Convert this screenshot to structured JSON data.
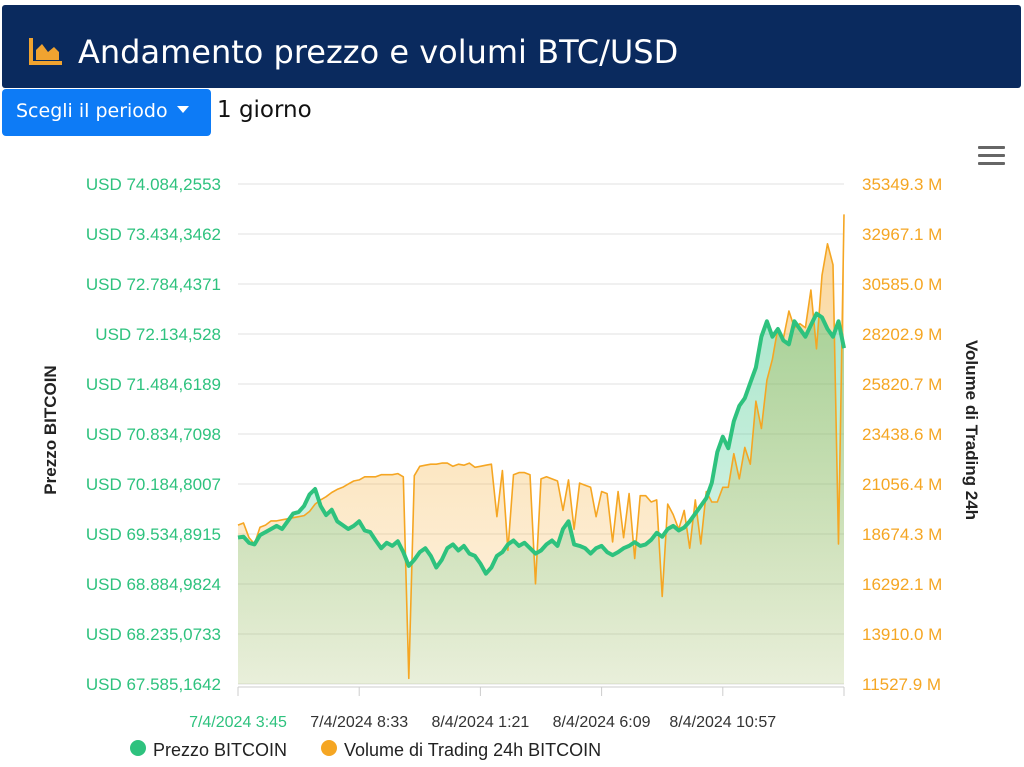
{
  "header": {
    "title": "Andamento prezzo e volumi BTC/USD",
    "icon": "area-chart-icon",
    "background": "#0a2a5e",
    "icon_color": "#f0a330"
  },
  "controls": {
    "period_button_label": "Scegli il periodo",
    "selected_period": "1 giorno",
    "menu_icon": "hamburger-menu-icon"
  },
  "colors": {
    "price": "#2ec27e",
    "volume": "#f5a623"
  },
  "chart_data": {
    "type": "area",
    "title": "",
    "y_left": {
      "label": "Prezzo BITCOIN",
      "min": 67585.1642,
      "max": 74084.2553,
      "ticks": [
        "USD 74.084,2553",
        "USD 73.434,3462",
        "USD 72.784,4371",
        "USD 72.134,528",
        "USD 71.484,6189",
        "USD 70.834,7098",
        "USD 70.184,8007",
        "USD 69.534,8915",
        "USD 68.884,9824",
        "USD 68.235,0733",
        "USD 67.585,1642"
      ]
    },
    "y_right": {
      "label": "Volume di Trading 24h",
      "min": 11527.9,
      "max": 35349.3,
      "unit": "M",
      "ticks": [
        "35349.3 M",
        "32967.1 M",
        "30585.0 M",
        "28202.9 M",
        "25820.7 M",
        "23438.6 M",
        "21056.4 M",
        "18674.3 M",
        "16292.1 M",
        "13910.0 M",
        "11527.9 M"
      ]
    },
    "x_ticks": [
      "7/4/2024 3:45",
      "7/4/2024 8:33",
      "8/4/2024 1:21",
      "8/4/2024 6:09",
      "8/4/2024 10:57"
    ],
    "legend": {
      "position": "bottom",
      "items": [
        "Prezzo BITCOIN",
        "Volume di Trading 24h BITCOIN"
      ]
    },
    "grid": true,
    "series": [
      {
        "name": "Prezzo BITCOIN",
        "axis": "left",
        "values": [
          69490,
          69500,
          69420,
          69400,
          69520,
          69560,
          69600,
          69640,
          69600,
          69700,
          69800,
          69820,
          69900,
          70050,
          70120,
          69900,
          69780,
          69850,
          69700,
          69650,
          69600,
          69640,
          69700,
          69580,
          69560,
          69450,
          69350,
          69420,
          69380,
          69440,
          69300,
          69120,
          69200,
          69300,
          69350,
          69250,
          69100,
          69200,
          69350,
          69400,
          69320,
          69380,
          69280,
          69250,
          69150,
          69020,
          69100,
          69250,
          69300,
          69400,
          69450,
          69380,
          69420,
          69350,
          69280,
          69320,
          69400,
          69450,
          69380,
          69600,
          69700,
          69400,
          69380,
          69350,
          69280,
          69350,
          69380,
          69300,
          69260,
          69300,
          69350,
          69380,
          69430,
          69380,
          69400,
          69460,
          69550,
          69500,
          69600,
          69640,
          69580,
          69620,
          69700,
          69800,
          69900,
          70000,
          70200,
          70600,
          70800,
          70650,
          71000,
          71200,
          71300,
          71500,
          71700,
          72100,
          72300,
          72100,
          72200,
          72050,
          72000,
          72300,
          72200,
          72100,
          72250,
          72400,
          72350,
          72200,
          72100,
          72300,
          71950
        ]
      },
      {
        "name": "Volume di Trading 24h BITCOIN",
        "axis": "right",
        "values": [
          19100,
          19200,
          18500,
          18200,
          19000,
          19100,
          19300,
          19300,
          19350,
          19400,
          19450,
          19500,
          19550,
          19750,
          20100,
          20300,
          20450,
          20650,
          20800,
          20900,
          21050,
          21200,
          21250,
          21400,
          21400,
          21400,
          21500,
          21500,
          21500,
          21550,
          21400,
          11800,
          21450,
          21900,
          21950,
          22000,
          22000,
          22050,
          22050,
          21900,
          22000,
          21950,
          22050,
          21850,
          21900,
          21950,
          22000,
          19500,
          21700,
          17900,
          21500,
          21600,
          21600,
          21500,
          16300,
          21300,
          21400,
          21300,
          21200,
          19800,
          21250,
          18900,
          21100,
          21000,
          20900,
          19500,
          20700,
          20600,
          18300,
          20700,
          18500,
          20600,
          17500,
          20500,
          20500,
          20200,
          20300,
          15700,
          20100,
          19600,
          18900,
          19800,
          18000,
          20300,
          18200,
          20700,
          20200,
          20200,
          20900,
          20900,
          22500,
          21300,
          22800,
          22000,
          25000,
          23700,
          26000,
          27000,
          28500,
          28000,
          29300,
          28500,
          28700,
          28500,
          30300,
          27500,
          31000,
          32500,
          31500,
          18200,
          33900
        ]
      }
    ]
  }
}
